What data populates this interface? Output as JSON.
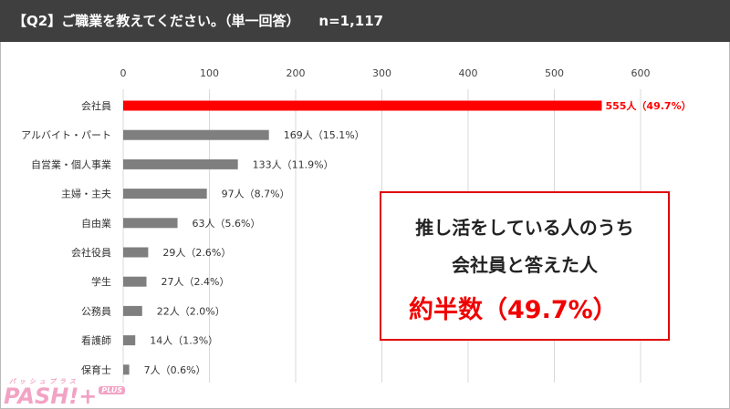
{
  "header": {
    "title": "【Q2】ご職業を教えてください。（単一回答）",
    "n": "n=1,117"
  },
  "chart_data": {
    "type": "bar",
    "orientation": "horizontal",
    "categories": [
      "会社員",
      "アルバイト・パート",
      "自営業・個人事業",
      "主婦・主夫",
      "自由業",
      "会社役員",
      "学生",
      "公務員",
      "看護師",
      "保育士"
    ],
    "values": [
      555,
      169,
      133,
      97,
      63,
      29,
      27,
      22,
      14,
      7
    ],
    "labels": [
      "555人（49.7%）",
      "169人（15.1%）",
      "133人（11.9%）",
      "97人（8.7%）",
      "63人（5.6%）",
      "29人（2.6%）",
      "27人（2.4%）",
      "22人（2.0%）",
      "14人（1.3%）",
      "7人（0.6%）"
    ],
    "percents": [
      49.7,
      15.1,
      11.9,
      8.7,
      5.6,
      2.6,
      2.4,
      2.0,
      1.3,
      0.6
    ],
    "xlim": [
      0,
      600
    ],
    "xticks": [
      0,
      100,
      200,
      300,
      400,
      500,
      600
    ],
    "grid": true,
    "highlight_color": "#ff0000",
    "bar_color": "#7f7f7f"
  },
  "callout": {
    "line1": "推し活をしている人のうち",
    "line2": "会社員と答えた人",
    "line3": "約半数（49.7%）"
  },
  "logo": {
    "kana": "パッシュプラス",
    "text": "PASH!+",
    "badge": "PLUS"
  }
}
